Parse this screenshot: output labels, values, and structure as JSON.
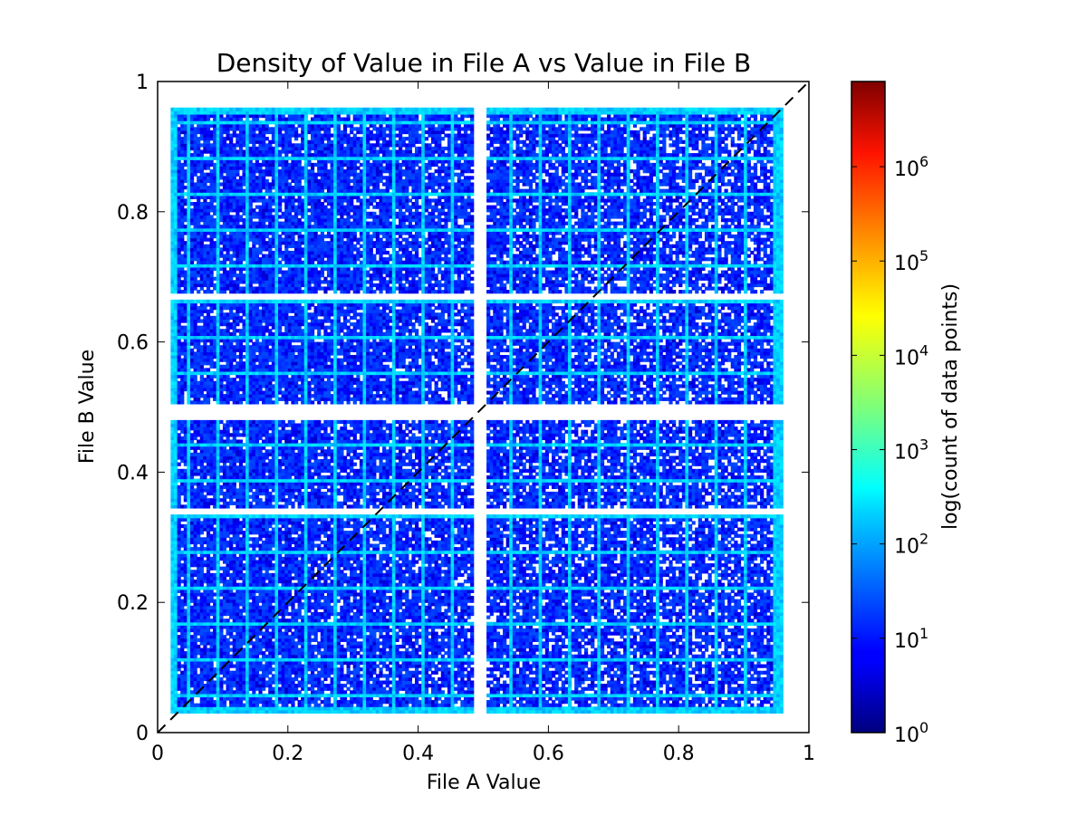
{
  "chart_data": {
    "type": "heatmap",
    "title": "Density of Value in File A vs Value in File B",
    "xlabel": "File A Value",
    "ylabel": "File B Value",
    "xlim": [
      0,
      1
    ],
    "ylim": [
      0,
      1
    ],
    "x_ticks": [
      "0",
      "0.2",
      "0.4",
      "0.6",
      "0.8",
      "1"
    ],
    "y_ticks": [
      "0",
      "0.2",
      "0.4",
      "0.6",
      "0.8",
      "1"
    ],
    "colorbar": {
      "label": "log(count of data points)",
      "scale": "log",
      "range": [
        1,
        8000000
      ],
      "ticks": [
        {
          "base": "10",
          "exp": "0",
          "value": 1
        },
        {
          "base": "10",
          "exp": "1",
          "value": 10
        },
        {
          "base": "10",
          "exp": "2",
          "value": 100
        },
        {
          "base": "10",
          "exp": "3",
          "value": 1000
        },
        {
          "base": "10",
          "exp": "4",
          "value": 10000
        },
        {
          "base": "10",
          "exp": "5",
          "value": 100000
        },
        {
          "base": "10",
          "exp": "6",
          "value": 1000000
        }
      ],
      "colormap": "jet"
    },
    "reference_line": {
      "style": "dashed",
      "color": "#000000",
      "from": [
        0,
        0
      ],
      "to": [
        1,
        1
      ]
    },
    "bins": 200,
    "data_extent": {
      "x": [
        0.02,
        0.96
      ],
      "y": [
        0.03,
        0.96
      ]
    },
    "empty_x_gaps": [
      [
        0.485,
        0.505
      ]
    ],
    "empty_y_gaps": [
      [
        0.48,
        0.505
      ],
      [
        0.335,
        0.345
      ],
      [
        0.665,
        0.675
      ]
    ],
    "typical_count": 10,
    "edge_count": 200,
    "grid": false
  }
}
